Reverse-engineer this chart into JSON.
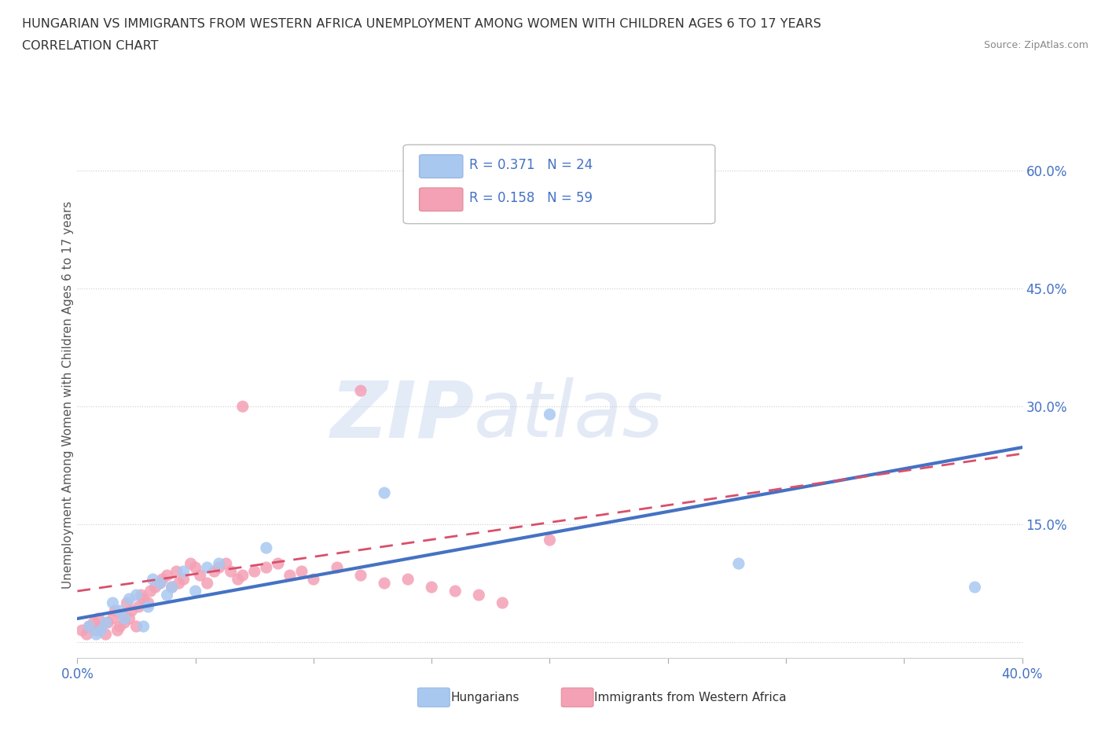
{
  "title_line1": "HUNGARIAN VS IMMIGRANTS FROM WESTERN AFRICA UNEMPLOYMENT AMONG WOMEN WITH CHILDREN AGES 6 TO 17 YEARS",
  "title_line2": "CORRELATION CHART",
  "source": "Source: ZipAtlas.com",
  "ylabel": "Unemployment Among Women with Children Ages 6 to 17 years",
  "xlim": [
    0.0,
    0.4
  ],
  "ylim": [
    -0.02,
    0.65
  ],
  "yticks": [
    0.0,
    0.15,
    0.3,
    0.45,
    0.6
  ],
  "ytick_labels_right": [
    "",
    "15.0%",
    "30.0%",
    "45.0%",
    "60.0%"
  ],
  "xticks": [
    0.0,
    0.05,
    0.1,
    0.15,
    0.2,
    0.25,
    0.3,
    0.35,
    0.4
  ],
  "xtick_labels": [
    "0.0%",
    "",
    "",
    "",
    "",
    "",
    "",
    "",
    "40.0%"
  ],
  "color_hungarian": "#a8c8f0",
  "color_western_africa": "#f4a0b5",
  "R_hungarian": 0.371,
  "N_hungarian": 24,
  "R_western_africa": 0.158,
  "N_western_africa": 59,
  "hungarian_x": [
    0.005,
    0.008,
    0.01,
    0.012,
    0.015,
    0.018,
    0.02,
    0.022,
    0.025,
    0.028,
    0.03,
    0.032,
    0.035,
    0.038,
    0.04,
    0.045,
    0.05,
    0.055,
    0.06,
    0.08,
    0.13,
    0.2,
    0.28,
    0.38
  ],
  "hungarian_y": [
    0.02,
    0.01,
    0.015,
    0.025,
    0.05,
    0.04,
    0.03,
    0.055,
    0.06,
    0.02,
    0.045,
    0.08,
    0.075,
    0.06,
    0.07,
    0.09,
    0.065,
    0.095,
    0.1,
    0.12,
    0.19,
    0.29,
    0.1,
    0.07
  ],
  "western_africa_x": [
    0.002,
    0.004,
    0.005,
    0.007,
    0.008,
    0.009,
    0.01,
    0.012,
    0.013,
    0.015,
    0.016,
    0.017,
    0.018,
    0.019,
    0.02,
    0.021,
    0.022,
    0.023,
    0.025,
    0.026,
    0.027,
    0.028,
    0.03,
    0.031,
    0.033,
    0.035,
    0.036,
    0.038,
    0.04,
    0.042,
    0.043,
    0.045,
    0.048,
    0.05,
    0.052,
    0.055,
    0.058,
    0.06,
    0.063,
    0.065,
    0.068,
    0.07,
    0.075,
    0.08,
    0.085,
    0.09,
    0.095,
    0.1,
    0.11,
    0.12,
    0.13,
    0.14,
    0.15,
    0.16,
    0.17,
    0.18,
    0.2,
    0.12,
    0.07
  ],
  "western_africa_y": [
    0.015,
    0.01,
    0.02,
    0.025,
    0.015,
    0.03,
    0.02,
    0.01,
    0.025,
    0.03,
    0.04,
    0.015,
    0.02,
    0.035,
    0.025,
    0.05,
    0.03,
    0.04,
    0.02,
    0.045,
    0.06,
    0.055,
    0.05,
    0.065,
    0.07,
    0.075,
    0.08,
    0.085,
    0.07,
    0.09,
    0.075,
    0.08,
    0.1,
    0.095,
    0.085,
    0.075,
    0.09,
    0.095,
    0.1,
    0.09,
    0.08,
    0.085,
    0.09,
    0.095,
    0.1,
    0.085,
    0.09,
    0.08,
    0.095,
    0.085,
    0.075,
    0.08,
    0.07,
    0.065,
    0.06,
    0.05,
    0.13,
    0.32,
    0.3
  ],
  "trend_blue_x0": 0.0,
  "trend_blue_y0": 0.03,
  "trend_blue_x1": 0.4,
  "trend_blue_y1": 0.248,
  "trend_pink_x0": 0.0,
  "trend_pink_y0": 0.065,
  "trend_pink_x1": 0.4,
  "trend_pink_y1": 0.24,
  "watermark_zip": "ZIP",
  "watermark_atlas": "atlas",
  "background_color": "#ffffff",
  "grid_color": "#cccccc",
  "trend_color_hungarian": "#4472c4",
  "trend_color_western_africa": "#d94f6a",
  "axis_label_color": "#4472c4"
}
